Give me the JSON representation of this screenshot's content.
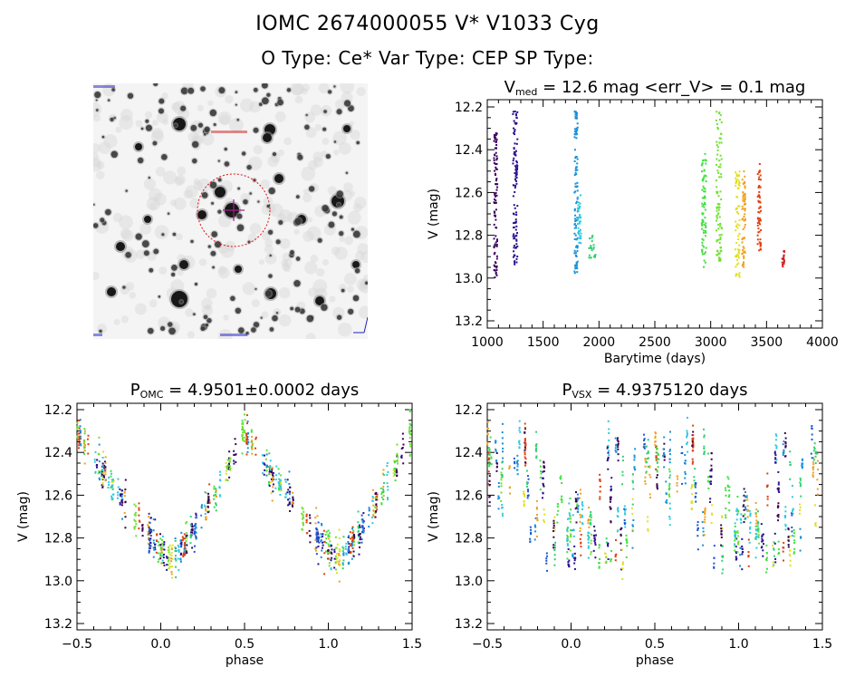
{
  "header": {
    "title_line1": "IOMC 2674000055    V* V1033 Cyg",
    "title_line2": "O Type: Ce*   Var Type: CEP   SP Type:"
  },
  "image_panel": {
    "description": "sky finding chart, grayscale, inverted",
    "marker": "red dashed circle with crosshair at target",
    "circle_color": "#e01010",
    "cross_color": "#a0208a",
    "corner_labels": [
      "FOV label (blue, illegible)",
      "label (red, illegible)",
      "label (blue, illegible)",
      "label (blue, illegible)"
    ]
  },
  "chart_data": [
    {
      "id": "lightcurve",
      "type": "scatter",
      "title": "V_med = 12.6 mag <err_V> = 0.1 mag",
      "title_main": "V",
      "title_sub": "med",
      "title_rest": " = 12.6 mag <err_V> = 0.1 mag",
      "xlabel": "Barytime (days)",
      "ylabel": "V (mag)",
      "xlim": [
        1000,
        4000
      ],
      "ylim": [
        13.2,
        12.2
      ],
      "y_inverted": true,
      "xticks": [
        1000,
        1500,
        2000,
        2500,
        3000,
        3500,
        4000
      ],
      "yticks": [
        12.2,
        12.4,
        12.6,
        12.8,
        13.0,
        13.2
      ],
      "ytick_labels": [
        "12.2",
        "12.4",
        "12.6",
        "12.8",
        "13.0",
        "13.2"
      ],
      "series": [
        {
          "name": "seg1",
          "color": "#3c0060",
          "x_range": [
            1060,
            1090
          ],
          "y_range": [
            12.32,
            13.0
          ]
        },
        {
          "name": "seg2",
          "color": "#2a1090",
          "x_range": [
            1230,
            1270
          ],
          "y_range": [
            12.22,
            13.0
          ]
        },
        {
          "name": "seg3",
          "color": "#1890d8",
          "x_range": [
            1780,
            1810
          ],
          "y_range": [
            12.22,
            12.98
          ]
        },
        {
          "name": "seg3b",
          "color": "#30c8e0",
          "x_range": [
            1810,
            1840
          ],
          "y_range": [
            12.6,
            12.85
          ]
        },
        {
          "name": "seg4",
          "color": "#30d070",
          "x_range": [
            1910,
            1970
          ],
          "y_range": [
            12.8,
            12.92
          ]
        },
        {
          "name": "seg5",
          "color": "#40e040",
          "x_range": [
            2920,
            2960
          ],
          "y_range": [
            12.4,
            12.95
          ]
        },
        {
          "name": "seg6",
          "color": "#70e030",
          "x_range": [
            3050,
            3100
          ],
          "y_range": [
            12.22,
            12.92
          ]
        },
        {
          "name": "seg7",
          "color": "#e0e020",
          "x_range": [
            3220,
            3260
          ],
          "y_range": [
            12.5,
            13.0
          ]
        },
        {
          "name": "seg8",
          "color": "#f0a020",
          "x_range": [
            3280,
            3310
          ],
          "y_range": [
            12.5,
            12.95
          ]
        },
        {
          "name": "seg9",
          "color": "#e04010",
          "x_range": [
            3420,
            3450
          ],
          "y_range": [
            12.46,
            12.88
          ]
        },
        {
          "name": "seg10",
          "color": "#d02020",
          "x_range": [
            3640,
            3660
          ],
          "y_range": [
            12.87,
            12.95
          ]
        }
      ]
    },
    {
      "id": "phase_omc",
      "type": "scatter",
      "title": "P_OMC = 4.9501±0.0002 days",
      "title_main": "P",
      "title_sub": "OMC",
      "title_rest": " = 4.9501±0.0002 days",
      "xlabel": "phase",
      "ylabel": "V (mag)",
      "xlim": [
        -0.5,
        1.5
      ],
      "ylim": [
        13.2,
        12.2
      ],
      "y_inverted": true,
      "xticks": [
        -0.5,
        0.0,
        0.5,
        1.0,
        1.5
      ],
      "xtick_labels": [
        "−0.5",
        "0.0",
        "0.5",
        "1.0",
        "1.5"
      ],
      "yticks": [
        12.2,
        12.4,
        12.6,
        12.8,
        13.0,
        13.2
      ],
      "ytick_labels": [
        "12.2",
        "12.4",
        "12.6",
        "12.8",
        "13.0",
        "13.2"
      ],
      "period_days": 4.9501,
      "amplitude_range_mag": [
        12.25,
        13.0
      ],
      "maximum_phase": 0.5,
      "minimum_phase": 0.05
    },
    {
      "id": "phase_vsx",
      "type": "scatter",
      "title": "P_VSX = 4.9375120 days",
      "title_main": "P",
      "title_sub": "VSX",
      "title_rest": " = 4.9375120 days",
      "xlabel": "phase",
      "ylabel": "V (mag)",
      "xlim": [
        -0.5,
        1.5
      ],
      "ylim": [
        13.2,
        12.2
      ],
      "y_inverted": true,
      "xticks": [
        -0.5,
        0.0,
        0.5,
        1.0,
        1.5
      ],
      "xtick_labels": [
        "−0.5",
        "0.0",
        "0.5",
        "1.0",
        "1.5"
      ],
      "yticks": [
        12.2,
        12.4,
        12.6,
        12.8,
        13.0,
        13.2
      ],
      "ytick_labels": [
        "12.2",
        "12.4",
        "12.6",
        "12.8",
        "13.0",
        "13.2"
      ],
      "period_days": 4.937512,
      "note": "points scattered, poorer phasing"
    }
  ]
}
